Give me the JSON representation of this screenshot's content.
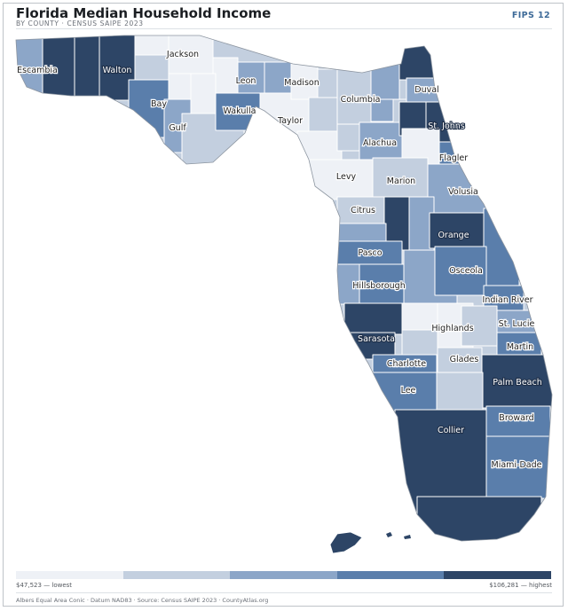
{
  "header": {
    "title": "Florida Median Household Income",
    "subtitle": "BY COUNTY · CENSUS SAIPE 2023",
    "badge": "FIPS 12"
  },
  "legend": {
    "min_label": "$47,523 — lowest",
    "max_label": "$106,281 — highest",
    "colors": [
      "#eef1f6",
      "#c3cfdf",
      "#8ca6c8",
      "#5a7eab",
      "#2d4566"
    ]
  },
  "footer": {
    "text": "Albers Equal Area Conic · Datum NAD83 · Source: Census SAIPE 2023 · CountyAtlas.org"
  },
  "map": {
    "county_labels": [
      {
        "name": "Escambia",
        "tier": 1
      },
      {
        "name": "Walton",
        "tier": 4
      },
      {
        "name": "Jackson",
        "tier": 0
      },
      {
        "name": "Bay",
        "tier": 3
      },
      {
        "name": "Gulf",
        "tier": 2
      },
      {
        "name": "Leon",
        "tier": 2
      },
      {
        "name": "Wakulla",
        "tier": 3
      },
      {
        "name": "Madison",
        "tier": 0
      },
      {
        "name": "Taylor",
        "tier": 0
      },
      {
        "name": "Columbia",
        "tier": 1
      },
      {
        "name": "Duval",
        "tier": 2
      },
      {
        "name": "St. Johns",
        "tier": 4
      },
      {
        "name": "Alachua",
        "tier": 2
      },
      {
        "name": "Flagler",
        "tier": 3
      },
      {
        "name": "Levy",
        "tier": 0
      },
      {
        "name": "Marion",
        "tier": 1
      },
      {
        "name": "Volusia",
        "tier": 2
      },
      {
        "name": "Citrus",
        "tier": 1
      },
      {
        "name": "Orange",
        "tier": 4
      },
      {
        "name": "Pasco",
        "tier": 3
      },
      {
        "name": "Osceola",
        "tier": 3
      },
      {
        "name": "Hillsborough",
        "tier": 3
      },
      {
        "name": "Indian River",
        "tier": 3
      },
      {
        "name": "St. Lucie",
        "tier": 2
      },
      {
        "name": "Highlands",
        "tier": 0
      },
      {
        "name": "Sarasota",
        "tier": 4
      },
      {
        "name": "Martin",
        "tier": 3
      },
      {
        "name": "Charlotte",
        "tier": 3
      },
      {
        "name": "Glades",
        "tier": 1
      },
      {
        "name": "Palm Beach",
        "tier": 4
      },
      {
        "name": "Lee",
        "tier": 3
      },
      {
        "name": "Collier",
        "tier": 4
      },
      {
        "name": "Broward",
        "tier": 3
      },
      {
        "name": "Miami-Dade",
        "tier": 3
      }
    ]
  }
}
